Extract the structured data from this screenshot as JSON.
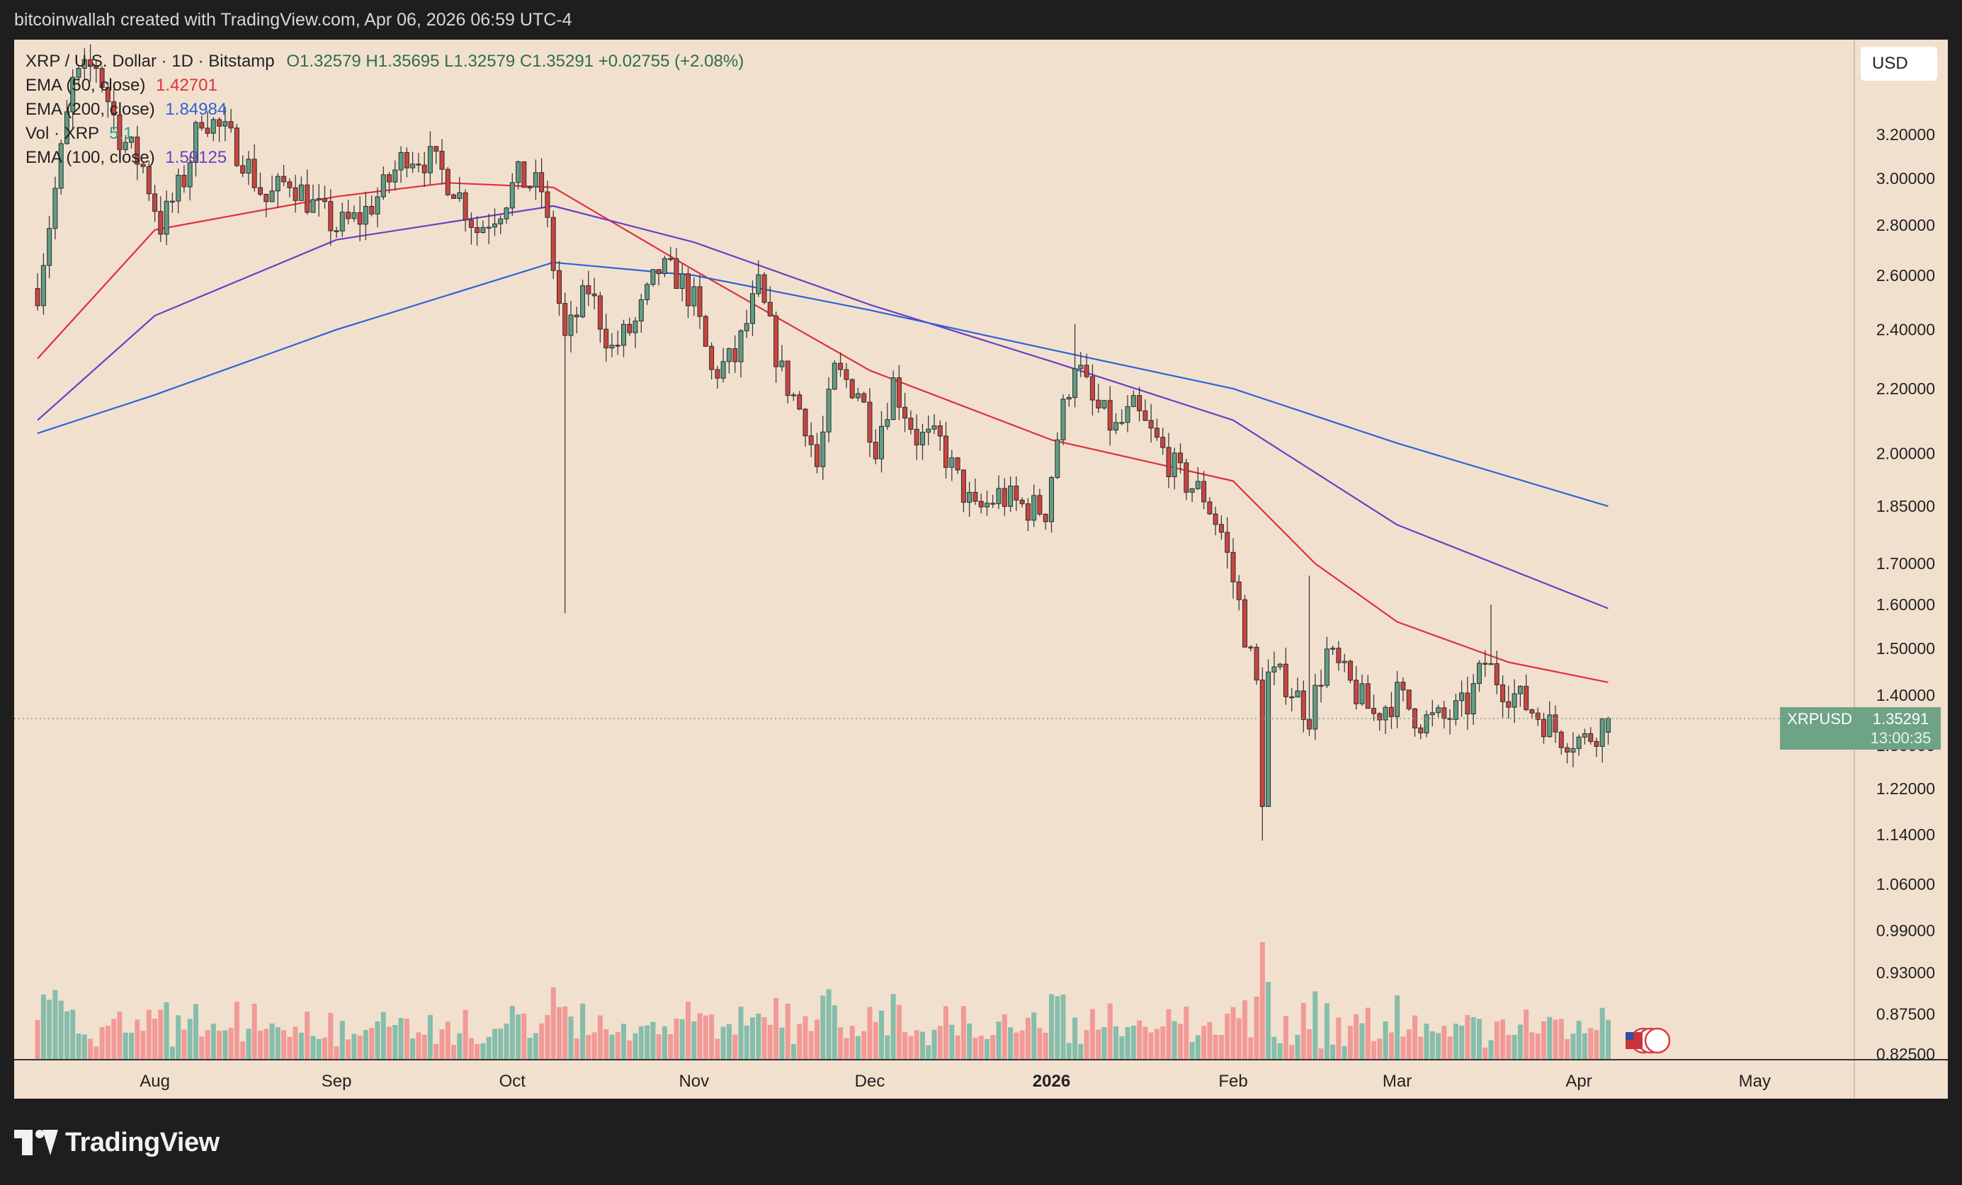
{
  "header": {
    "credit": "bitcoinwallah created with TradingView.com, Apr 06, 2026 06:59 UTC-4"
  },
  "legend": {
    "symbol": "XRP / U.S. Dollar · 1D · Bitstamp",
    "ohlc": "O1.32579  H1.35695  L1.32579  C1.35291  +0.02755 (+2.08%)",
    "ema50_label": "EMA (50, close)",
    "ema50_value": "1.42701",
    "ema200_label": "EMA (200, close)",
    "ema200_value": "1.84984",
    "vol_label": "Vol · XRP",
    "vol_value": "5.1",
    "ema100_label": "EMA (100, close)",
    "ema100_value": "1.59125"
  },
  "currency_button": "USD",
  "price_tag": {
    "symbol": "XRPUSD",
    "value": "1.35291",
    "countdown": "13:00:35"
  },
  "brand": "TradingView",
  "colors": {
    "up": "#5f9d84",
    "down": "#c9453f",
    "vol_up": "#86bdab",
    "vol_down": "#f19a96",
    "ema50": "#e0303a",
    "ema100": "#6a3fc4",
    "ema200": "#2f62d8"
  },
  "icons": [
    "tradingview-logo-icon",
    "us-flag-event-icon"
  ],
  "chart_data": {
    "type": "candlestick",
    "title": "XRP / U.S. Dollar · 1D · Bitstamp",
    "ylabel": "",
    "xlabel": "",
    "y_scale": "log",
    "ylim": [
      0.8,
      3.45
    ],
    "y_ticks": [
      "3.20000",
      "3.00000",
      "2.80000",
      "2.60000",
      "2.40000",
      "2.20000",
      "2.00000",
      "1.85000",
      "1.70000",
      "1.60000",
      "1.50000",
      "1.40000",
      "1.30000",
      "1.22000",
      "1.14000",
      "1.06000",
      "0.99000",
      "0.93000",
      "0.87500",
      "0.82500"
    ],
    "x_ticks": [
      "Aug",
      "Sep",
      "Oct",
      "Nov",
      "Dec",
      "2026",
      "Feb",
      "Mar",
      "Apr",
      "May"
    ],
    "grid": false,
    "legend": "top-left",
    "last": {
      "open": 1.32579,
      "high": 1.35695,
      "low": 1.32579,
      "close": 1.35291
    },
    "close_path": [
      [
        "2025-07-12",
        2.55
      ],
      [
        "2025-07-15",
        2.95
      ],
      [
        "2025-07-18",
        3.45
      ],
      [
        "2025-07-22",
        3.55
      ],
      [
        "2025-07-26",
        3.2
      ],
      [
        "2025-07-30",
        3.05
      ],
      [
        "2025-08-02",
        2.8
      ],
      [
        "2025-08-06",
        3.0
      ],
      [
        "2025-08-09",
        3.3
      ],
      [
        "2025-08-13",
        3.2
      ],
      [
        "2025-08-16",
        3.1
      ],
      [
        "2025-08-20",
        2.9
      ],
      [
        "2025-08-24",
        3.0
      ],
      [
        "2025-08-28",
        2.88
      ],
      [
        "2025-09-01",
        2.79
      ],
      [
        "2025-09-05",
        2.83
      ],
      [
        "2025-09-09",
        2.95
      ],
      [
        "2025-09-13",
        3.12
      ],
      [
        "2025-09-17",
        3.08
      ],
      [
        "2025-09-21",
        2.97
      ],
      [
        "2025-09-25",
        2.78
      ],
      [
        "2025-09-29",
        2.88
      ],
      [
        "2025-10-02",
        3.0
      ],
      [
        "2025-10-06",
        2.95
      ],
      [
        "2025-10-10",
        2.36
      ],
      [
        "2025-10-14",
        2.55
      ],
      [
        "2025-10-18",
        2.33
      ],
      [
        "2025-10-22",
        2.42
      ],
      [
        "2025-10-26",
        2.62
      ],
      [
        "2025-10-29",
        2.6
      ],
      [
        "2025-11-01",
        2.5
      ],
      [
        "2025-11-04",
        2.25
      ],
      [
        "2025-11-08",
        2.3
      ],
      [
        "2025-11-12",
        2.55
      ],
      [
        "2025-11-16",
        2.25
      ],
      [
        "2025-11-20",
        2.1
      ],
      [
        "2025-11-22",
        1.96
      ],
      [
        "2025-11-25",
        2.25
      ],
      [
        "2025-11-29",
        2.2
      ],
      [
        "2025-12-02",
        2.03
      ],
      [
        "2025-12-05",
        2.22
      ],
      [
        "2025-12-09",
        2.05
      ],
      [
        "2025-12-13",
        2.03
      ],
      [
        "2025-12-16",
        1.92
      ],
      [
        "2025-12-19",
        1.83
      ],
      [
        "2025-12-23",
        1.88
      ],
      [
        "2025-12-27",
        1.85
      ],
      [
        "2025-12-31",
        1.84
      ],
      [
        "2026-01-02",
        2.05
      ],
      [
        "2026-01-05",
        2.3
      ],
      [
        "2026-01-08",
        2.15
      ],
      [
        "2026-01-12",
        2.07
      ],
      [
        "2026-01-15",
        2.13
      ],
      [
        "2026-01-19",
        2.03
      ],
      [
        "2026-01-23",
        1.93
      ],
      [
        "2026-01-27",
        1.88
      ],
      [
        "2026-01-30",
        1.78
      ],
      [
        "2026-02-02",
        1.6
      ],
      [
        "2026-02-05",
        1.42
      ],
      [
        "2026-02-06",
        1.21
      ],
      [
        "2026-02-07",
        1.44
      ],
      [
        "2026-02-10",
        1.43
      ],
      [
        "2026-02-14",
        1.36
      ],
      [
        "2026-02-17",
        1.49
      ],
      [
        "2026-02-21",
        1.42
      ],
      [
        "2026-02-25",
        1.36
      ],
      [
        "2026-03-01",
        1.4
      ],
      [
        "2026-03-05",
        1.35
      ],
      [
        "2026-03-09",
        1.35
      ],
      [
        "2026-03-13",
        1.38
      ],
      [
        "2026-03-16",
        1.47
      ],
      [
        "2026-03-19",
        1.42
      ],
      [
        "2026-03-23",
        1.38
      ],
      [
        "2026-03-26",
        1.35
      ],
      [
        "2026-03-29",
        1.32
      ],
      [
        "2026-04-02",
        1.31
      ],
      [
        "2026-04-06",
        1.35291
      ]
    ],
    "volume": "bars below price, colored by candle direction",
    "series": [
      {
        "name": "EMA (50, close)",
        "last": 1.42701,
        "points": [
          [
            "2025-07-12",
            2.3
          ],
          [
            "2025-08-01",
            2.78
          ],
          [
            "2025-09-01",
            2.92
          ],
          [
            "2025-09-20",
            2.98
          ],
          [
            "2025-10-08",
            2.96
          ],
          [
            "2025-11-01",
            2.62
          ],
          [
            "2025-12-01",
            2.26
          ],
          [
            "2026-01-01",
            2.04
          ],
          [
            "2026-02-01",
            1.92
          ],
          [
            "2026-02-15",
            1.7
          ],
          [
            "2026-03-01",
            1.56
          ],
          [
            "2026-03-20",
            1.47
          ],
          [
            "2026-04-06",
            1.42701
          ]
        ]
      },
      {
        "name": "EMA (100, close)",
        "last": 1.59125,
        "points": [
          [
            "2025-07-12",
            2.1
          ],
          [
            "2025-08-01",
            2.45
          ],
          [
            "2025-09-01",
            2.74
          ],
          [
            "2025-10-08",
            2.88
          ],
          [
            "2025-11-01",
            2.73
          ],
          [
            "2025-12-01",
            2.49
          ],
          [
            "2026-01-01",
            2.29
          ],
          [
            "2026-02-01",
            2.1
          ],
          [
            "2026-03-01",
            1.8
          ],
          [
            "2026-04-06",
            1.59125
          ]
        ]
      },
      {
        "name": "EMA (200, close)",
        "last": 1.84984,
        "points": [
          [
            "2025-07-12",
            2.06
          ],
          [
            "2025-08-01",
            2.18
          ],
          [
            "2025-09-01",
            2.4
          ],
          [
            "2025-10-08",
            2.65
          ],
          [
            "2025-11-01",
            2.6
          ],
          [
            "2025-12-01",
            2.47
          ],
          [
            "2026-01-01",
            2.33
          ],
          [
            "2026-02-01",
            2.2
          ],
          [
            "2026-03-01",
            2.03
          ],
          [
            "2026-04-06",
            1.84984
          ]
        ]
      }
    ]
  }
}
